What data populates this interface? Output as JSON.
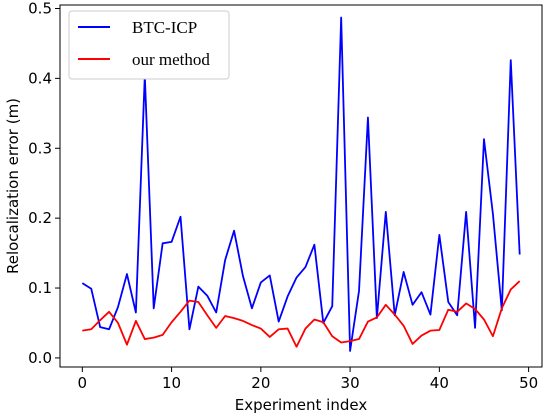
{
  "chart_data": {
    "type": "line",
    "xlabel": "Experiment index",
    "ylabel": "Relocalization error (m)",
    "xlim": [
      -2.5,
      51.5
    ],
    "ylim": [
      -0.013,
      0.505
    ],
    "xticks": [
      0,
      10,
      20,
      30,
      40,
      50
    ],
    "yticks": [
      0.0,
      0.1,
      0.2,
      0.3,
      0.4,
      0.5
    ],
    "xtick_labels": [
      "0",
      "10",
      "20",
      "30",
      "40",
      "50"
    ],
    "ytick_labels": [
      "0.0",
      "0.1",
      "0.2",
      "0.3",
      "0.4",
      "0.5"
    ],
    "grid": false,
    "legend_position": "top-left",
    "x": [
      0,
      1,
      2,
      3,
      4,
      5,
      6,
      7,
      8,
      9,
      10,
      11,
      12,
      13,
      14,
      15,
      16,
      17,
      18,
      19,
      20,
      21,
      22,
      23,
      24,
      25,
      26,
      27,
      28,
      29,
      30,
      31,
      32,
      33,
      34,
      35,
      36,
      37,
      38,
      39,
      40,
      41,
      42,
      43,
      44,
      45,
      46,
      47,
      48,
      49
    ],
    "series": [
      {
        "name": "BTC-ICP",
        "color": "#0000ff",
        "values": [
          0.107,
          0.099,
          0.044,
          0.041,
          0.073,
          0.12,
          0.065,
          0.404,
          0.071,
          0.164,
          0.166,
          0.202,
          0.041,
          0.102,
          0.089,
          0.065,
          0.14,
          0.182,
          0.117,
          0.071,
          0.108,
          0.118,
          0.052,
          0.088,
          0.115,
          0.13,
          0.162,
          0.05,
          0.074,
          0.487,
          0.01,
          0.096,
          0.344,
          0.057,
          0.209,
          0.061,
          0.123,
          0.076,
          0.094,
          0.062,
          0.176,
          0.08,
          0.061,
          0.209,
          0.043,
          0.313,
          0.206,
          0.068,
          0.426,
          0.148
        ]
      },
      {
        "name": "our method",
        "color": "#ff0000",
        "values": [
          0.039,
          0.041,
          0.054,
          0.066,
          0.05,
          0.019,
          0.053,
          0.027,
          0.029,
          0.033,
          0.051,
          0.066,
          0.082,
          0.08,
          0.061,
          0.043,
          0.06,
          0.057,
          0.053,
          0.047,
          0.042,
          0.03,
          0.041,
          0.042,
          0.016,
          0.042,
          0.055,
          0.051,
          0.031,
          0.022,
          0.024,
          0.027,
          0.052,
          0.058,
          0.076,
          0.062,
          0.046,
          0.02,
          0.032,
          0.039,
          0.04,
          0.069,
          0.066,
          0.078,
          0.07,
          0.055,
          0.031,
          0.071,
          0.098,
          0.11
        ]
      }
    ]
  }
}
